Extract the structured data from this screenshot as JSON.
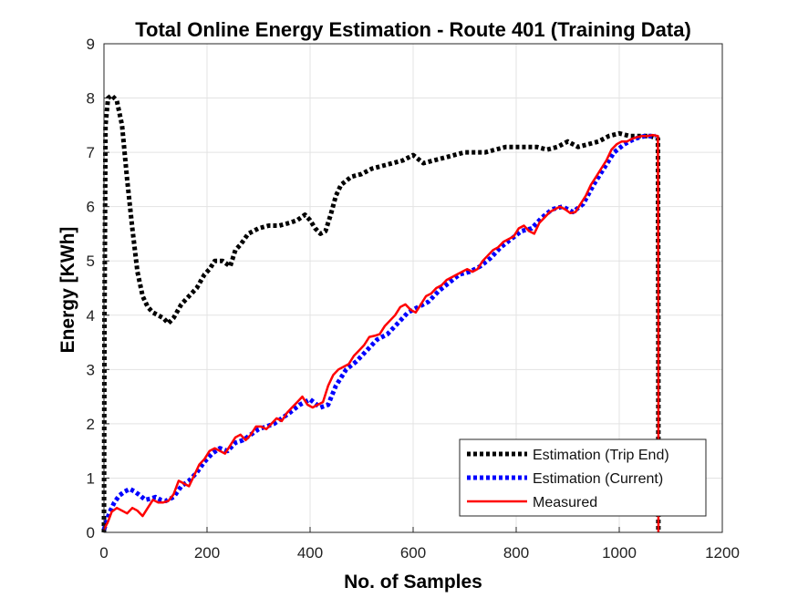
{
  "chart_data": {
    "type": "line",
    "title": "Total Online Energy Estimation - Route 401 (Training Data)",
    "xlabel": "No. of Samples",
    "ylabel": "Energy [KWh]",
    "xlim": [
      0,
      1200
    ],
    "ylim": [
      0,
      9
    ],
    "x_ticks": [
      0,
      200,
      400,
      600,
      800,
      1000,
      1200
    ],
    "y_ticks": [
      0,
      1,
      2,
      3,
      4,
      5,
      6,
      7,
      8,
      9
    ],
    "grid": true,
    "legend_placement": "bottom-right",
    "series": [
      {
        "name": "Estimation (Trip End)",
        "color": "#000000",
        "style": "dotted",
        "x": [
          0,
          1,
          3,
          8,
          15,
          25,
          35,
          45,
          55,
          65,
          75,
          85,
          95,
          105,
          115,
          125,
          135,
          150,
          165,
          180,
          195,
          205,
          215,
          230,
          245,
          255,
          265,
          280,
          300,
          320,
          340,
          360,
          375,
          390,
          400,
          410,
          420,
          430,
          440,
          450,
          460,
          480,
          500,
          520,
          540,
          560,
          580,
          600,
          620,
          640,
          660,
          680,
          700,
          720,
          740,
          760,
          780,
          800,
          820,
          840,
          860,
          880,
          900,
          920,
          940,
          960,
          980,
          1000,
          1020,
          1040,
          1060,
          1075,
          1076,
          1076
        ],
        "y": [
          0,
          4,
          7.5,
          8.0,
          8.05,
          7.95,
          7.5,
          6.5,
          5.6,
          4.8,
          4.35,
          4.15,
          4.05,
          4.0,
          3.95,
          3.85,
          3.95,
          4.2,
          4.35,
          4.5,
          4.75,
          4.85,
          5.0,
          5.0,
          4.9,
          5.2,
          5.3,
          5.5,
          5.6,
          5.65,
          5.65,
          5.7,
          5.75,
          5.85,
          5.75,
          5.6,
          5.5,
          5.55,
          5.85,
          6.2,
          6.4,
          6.55,
          6.6,
          6.7,
          6.75,
          6.8,
          6.85,
          6.95,
          6.8,
          6.85,
          6.9,
          6.95,
          7.0,
          7.0,
          7.0,
          7.05,
          7.1,
          7.1,
          7.1,
          7.1,
          7.05,
          7.1,
          7.2,
          7.1,
          7.15,
          7.2,
          7.3,
          7.35,
          7.3,
          7.3,
          7.3,
          7.25,
          3.6,
          0
        ]
      },
      {
        "name": "Estimation (Current)",
        "color": "#0000ff",
        "style": "dotted",
        "x": [
          0,
          10,
          20,
          30,
          40,
          50,
          60,
          70,
          80,
          90,
          100,
          110,
          120,
          135,
          150,
          165,
          180,
          195,
          210,
          225,
          240,
          255,
          270,
          285,
          300,
          315,
          330,
          345,
          360,
          380,
          400,
          420,
          435,
          450,
          470,
          490,
          510,
          530,
          550,
          570,
          590,
          610,
          630,
          650,
          670,
          690,
          710,
          730,
          750,
          770,
          790,
          810,
          830,
          850,
          870,
          890,
          910,
          930,
          950,
          970,
          990,
          1010,
          1030,
          1050,
          1070
        ],
        "y": [
          0.05,
          0.35,
          0.55,
          0.68,
          0.75,
          0.8,
          0.75,
          0.68,
          0.6,
          0.62,
          0.65,
          0.6,
          0.58,
          0.65,
          0.85,
          0.95,
          1.1,
          1.3,
          1.45,
          1.55,
          1.5,
          1.65,
          1.7,
          1.8,
          1.9,
          1.95,
          2.0,
          2.1,
          2.2,
          2.35,
          2.45,
          2.3,
          2.35,
          2.7,
          3.0,
          3.15,
          3.35,
          3.55,
          3.65,
          3.85,
          4.05,
          4.15,
          4.25,
          4.45,
          4.6,
          4.75,
          4.8,
          4.9,
          5.05,
          5.25,
          5.4,
          5.55,
          5.6,
          5.8,
          5.95,
          6.0,
          5.9,
          6.05,
          6.4,
          6.7,
          7.0,
          7.15,
          7.25,
          7.3,
          7.3
        ]
      },
      {
        "name": "Measured",
        "color": "#ff0000",
        "style": "solid",
        "x": [
          0,
          8,
          15,
          25,
          35,
          45,
          55,
          65,
          75,
          85,
          95,
          105,
          115,
          125,
          135,
          145,
          155,
          165,
          175,
          185,
          195,
          205,
          215,
          225,
          235,
          245,
          255,
          265,
          275,
          285,
          295,
          305,
          315,
          325,
          335,
          345,
          355,
          365,
          375,
          385,
          395,
          405,
          415,
          425,
          435,
          445,
          455,
          465,
          475,
          485,
          495,
          505,
          515,
          525,
          535,
          545,
          555,
          565,
          575,
          585,
          595,
          605,
          615,
          625,
          635,
          645,
          655,
          665,
          675,
          685,
          695,
          705,
          715,
          725,
          735,
          745,
          755,
          765,
          775,
          785,
          795,
          805,
          815,
          825,
          835,
          845,
          855,
          865,
          875,
          885,
          895,
          905,
          915,
          925,
          935,
          945,
          955,
          965,
          975,
          985,
          995,
          1005,
          1015,
          1025,
          1035,
          1045,
          1055,
          1065,
          1075,
          1076,
          1076
        ],
        "y": [
          0.05,
          0.2,
          0.38,
          0.45,
          0.4,
          0.35,
          0.45,
          0.4,
          0.3,
          0.45,
          0.6,
          0.55,
          0.55,
          0.58,
          0.7,
          0.95,
          0.9,
          0.85,
          1.05,
          1.25,
          1.35,
          1.5,
          1.55,
          1.5,
          1.45,
          1.6,
          1.75,
          1.8,
          1.7,
          1.8,
          1.95,
          1.95,
          1.9,
          2.0,
          2.1,
          2.05,
          2.2,
          2.3,
          2.4,
          2.5,
          2.35,
          2.3,
          2.35,
          2.4,
          2.7,
          2.9,
          3.0,
          3.05,
          3.1,
          3.25,
          3.35,
          3.45,
          3.6,
          3.62,
          3.65,
          3.8,
          3.9,
          4.0,
          4.15,
          4.2,
          4.1,
          4.05,
          4.2,
          4.35,
          4.4,
          4.5,
          4.55,
          4.65,
          4.7,
          4.75,
          4.8,
          4.85,
          4.8,
          4.85,
          5.0,
          5.1,
          5.2,
          5.25,
          5.35,
          5.4,
          5.45,
          5.6,
          5.65,
          5.55,
          5.5,
          5.7,
          5.8,
          5.9,
          5.95,
          6.0,
          5.95,
          5.88,
          5.9,
          6.05,
          6.2,
          6.4,
          6.55,
          6.7,
          6.85,
          7.05,
          7.15,
          7.2,
          7.2,
          7.25,
          7.28,
          7.3,
          7.3,
          7.32,
          7.3,
          3.6,
          0
        ]
      }
    ]
  }
}
